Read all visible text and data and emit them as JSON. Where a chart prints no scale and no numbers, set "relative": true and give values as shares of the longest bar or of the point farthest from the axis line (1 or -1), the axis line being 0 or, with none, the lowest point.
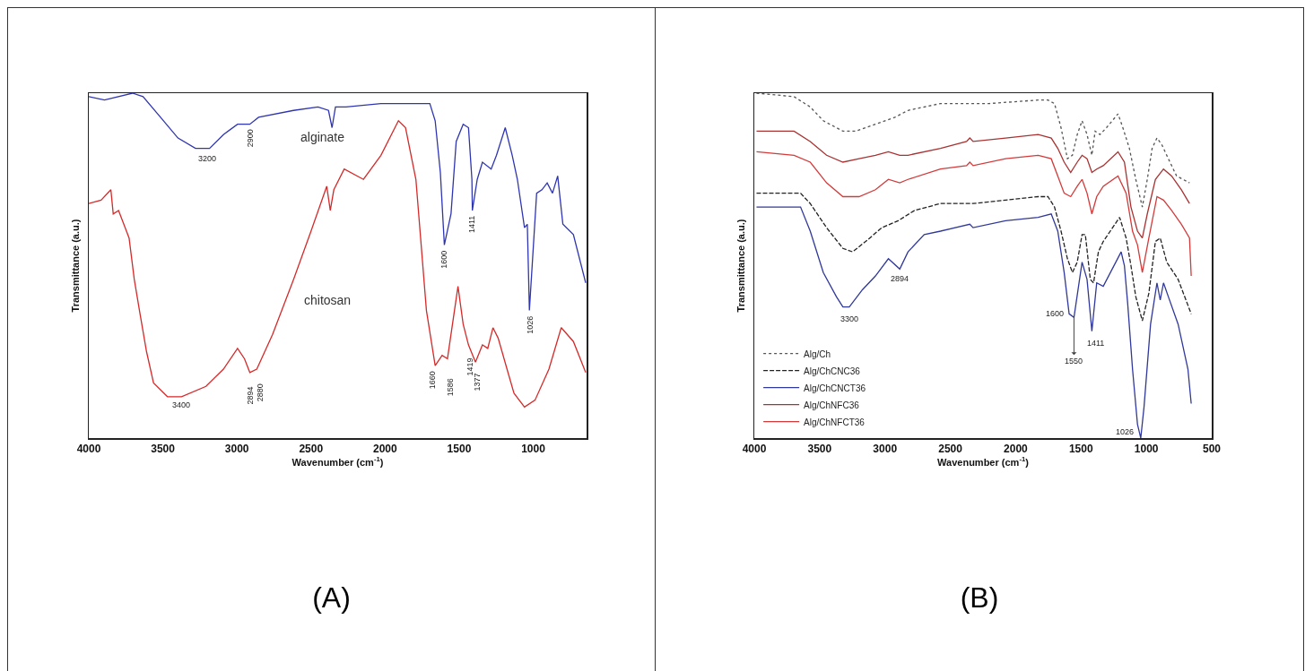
{
  "chart_data": [
    {
      "type": "line",
      "relative": true,
      "xlabel": "Wavenumber (cm$^{-1}$)",
      "ylabel": "Transmittance (a.u.)",
      "xlim": [
        4000,
        640
      ],
      "xticks": [
        4000,
        3500,
        3000,
        2500,
        2000,
        1500,
        1000
      ],
      "grid": false,
      "legend": false,
      "marker": "none",
      "series": [
        {
          "name": "alginate",
          "color": "#2f35b0",
          "line_style": "solid",
          "x": [
            4000,
            3894,
            3705,
            3634,
            3516,
            3398,
            3280,
            3185,
            3091,
            2996,
            2913,
            2854,
            2618,
            2453,
            2382,
            2358,
            2335,
            2264,
            2028,
            1721,
            1698,
            1662,
            1627,
            1600,
            1555,
            1520,
            1473,
            1437,
            1414,
            1411,
            1378,
            1343,
            1284,
            1248,
            1189,
            1142,
            1107,
            1059,
            1040,
            1026,
            977,
            941,
            906,
            870,
            835,
            800,
            729,
            646
          ],
          "values": [
            0.99,
            0.98,
            1.0,
            0.99,
            0.93,
            0.87,
            0.84,
            0.84,
            0.88,
            0.91,
            0.91,
            0.93,
            0.95,
            0.96,
            0.95,
            0.9,
            0.96,
            0.96,
            0.97,
            0.97,
            0.97,
            0.92,
            0.77,
            0.56,
            0.65,
            0.86,
            0.91,
            0.9,
            0.75,
            0.66,
            0.75,
            0.8,
            0.78,
            0.82,
            0.9,
            0.82,
            0.75,
            0.61,
            0.62,
            0.37,
            0.71,
            0.72,
            0.74,
            0.71,
            0.76,
            0.62,
            0.59,
            0.45
          ]
        },
        {
          "name": "chitosan",
          "color": "#d42a2a",
          "line_style": "solid",
          "x": [
            4000,
            3917,
            3851,
            3835,
            3799,
            3728,
            3693,
            3658,
            3610,
            3563,
            3469,
            3374,
            3209,
            3091,
            2996,
            2949,
            2913,
            2866,
            2760,
            2618,
            2500,
            2394,
            2370,
            2346,
            2276,
            2146,
            2028,
            1910,
            1862,
            1792,
            1721,
            1662,
            1615,
            1579,
            1508,
            1473,
            1437,
            1390,
            1343,
            1307,
            1272,
            1237,
            1177,
            1130,
            1059,
            988,
            894,
            811,
            729,
            646
          ],
          "values": [
            0.68,
            0.69,
            0.72,
            0.65,
            0.66,
            0.58,
            0.46,
            0.37,
            0.25,
            0.16,
            0.12,
            0.12,
            0.15,
            0.2,
            0.26,
            0.23,
            0.19,
            0.2,
            0.3,
            0.46,
            0.6,
            0.73,
            0.66,
            0.72,
            0.78,
            0.75,
            0.82,
            0.92,
            0.9,
            0.75,
            0.37,
            0.21,
            0.24,
            0.23,
            0.44,
            0.33,
            0.27,
            0.22,
            0.27,
            0.26,
            0.32,
            0.29,
            0.2,
            0.13,
            0.09,
            0.11,
            0.2,
            0.32,
            0.28,
            0.19
          ]
        }
      ],
      "annotations": [
        {
          "text": "3200",
          "x": 3200,
          "y": 0.84
        },
        {
          "text": "2900",
          "x": 2913,
          "y": 0.91
        },
        {
          "text": "1600",
          "x": 1600,
          "y": 0.56
        },
        {
          "text": "1411",
          "x": 1411,
          "y": 0.66
        },
        {
          "text": "1026",
          "x": 1026,
          "y": 0.37
        },
        {
          "text": "3400",
          "x": 3374,
          "y": 0.12
        },
        {
          "text": "2894",
          "x": 2913,
          "y": 0.19
        },
        {
          "text": "2880",
          "x": 2866,
          "y": 0.2
        },
        {
          "text": "1660",
          "x": 1662,
          "y": 0.21
        },
        {
          "text": "1586",
          "x": 1579,
          "y": 0.23
        },
        {
          "text": "1419",
          "x": 1437,
          "y": 0.27
        },
        {
          "text": "1377",
          "x": 1390,
          "y": 0.22
        },
        "(A)"
      ]
    },
    {
      "type": "line",
      "relative": true,
      "xlabel": "Wavenumber (cm$^{-1}$)",
      "ylabel": "Transmittance (a.u.)",
      "xlim": [
        4000,
        500
      ],
      "xticks": [
        4000,
        3500,
        3000,
        2500,
        2000,
        1500,
        1000,
        500
      ],
      "grid": false,
      "legend": "bottom left",
      "marker": "none",
      "series": [
        {
          "name": "Alg/Ch",
          "color": "#555555",
          "line_style": "dotted",
          "x": [
            3983,
            3696,
            3572,
            3472,
            3322,
            3223,
            3073,
            2924,
            2824,
            2575,
            2326,
            2201,
            1828,
            1753,
            1703,
            1653,
            1604,
            1566,
            1529,
            1492,
            1454,
            1417,
            1392,
            1355,
            1305,
            1217,
            1180,
            1130,
            1081,
            1031,
            993,
            956,
            919,
            881,
            832,
            769,
            670
          ],
          "values": [
            1.0,
            0.99,
            0.96,
            0.92,
            0.89,
            0.89,
            0.91,
            0.93,
            0.95,
            0.97,
            0.97,
            0.97,
            0.98,
            0.98,
            0.97,
            0.9,
            0.81,
            0.82,
            0.88,
            0.92,
            0.88,
            0.82,
            0.89,
            0.88,
            0.9,
            0.94,
            0.9,
            0.84,
            0.75,
            0.67,
            0.75,
            0.84,
            0.87,
            0.85,
            0.81,
            0.76,
            0.74
          ]
        },
        {
          "name": "Alg/ChCNC36",
          "color": "#222222",
          "line_style": "dashed",
          "x": [
            3983,
            3646,
            3572,
            3447,
            3322,
            3248,
            3148,
            3024,
            2899,
            2774,
            2575,
            2326,
            2077,
            1828,
            1753,
            1703,
            1653,
            1604,
            1566,
            1529,
            1492,
            1467,
            1429,
            1404,
            1367,
            1330,
            1205,
            1155,
            1118,
            1081,
            1031,
            981,
            931,
            894,
            844,
            757,
            657
          ],
          "values": [
            0.71,
            0.71,
            0.68,
            0.61,
            0.55,
            0.54,
            0.57,
            0.61,
            0.63,
            0.66,
            0.68,
            0.68,
            0.69,
            0.7,
            0.7,
            0.67,
            0.6,
            0.52,
            0.48,
            0.51,
            0.59,
            0.59,
            0.46,
            0.45,
            0.54,
            0.57,
            0.64,
            0.58,
            0.5,
            0.41,
            0.34,
            0.42,
            0.57,
            0.58,
            0.51,
            0.46,
            0.36
          ]
        },
        {
          "name": "Alg/ChCNCT36",
          "color": "#30389a",
          "line_style": "solid",
          "x": [
            3983,
            3746,
            3646,
            3572,
            3472,
            3372,
            3322,
            3273,
            3173,
            3073,
            2974,
            2887,
            2824,
            2700,
            2575,
            2351,
            2326,
            2077,
            1828,
            1728,
            1678,
            1629,
            1591,
            1554,
            1492,
            1454,
            1417,
            1380,
            1330,
            1193,
            1168,
            1143,
            1106,
            1068,
            1043,
            1018,
            968,
            919,
            894,
            869,
            832,
            757,
            682,
            657
          ],
          "values": [
            0.67,
            0.67,
            0.67,
            0.6,
            0.48,
            0.41,
            0.38,
            0.38,
            0.43,
            0.47,
            0.52,
            0.49,
            0.54,
            0.59,
            0.6,
            0.62,
            0.61,
            0.63,
            0.64,
            0.65,
            0.6,
            0.48,
            0.36,
            0.35,
            0.51,
            0.46,
            0.31,
            0.45,
            0.44,
            0.54,
            0.5,
            0.39,
            0.2,
            0.04,
            0.0,
            0.09,
            0.33,
            0.45,
            0.4,
            0.45,
            0.41,
            0.33,
            0.2,
            0.1
          ]
        },
        {
          "name": "Alg/ChNFC36",
          "color": "#a83232",
          "line_style": "solid",
          "x": [
            3983,
            3696,
            3572,
            3447,
            3322,
            3198,
            3073,
            2974,
            2887,
            2824,
            2575,
            2376,
            2351,
            2326,
            2077,
            1828,
            1728,
            1678,
            1629,
            1579,
            1529,
            1492,
            1454,
            1417,
            1380,
            1330,
            1217,
            1168,
            1118,
            1068,
            1031,
            993,
            931,
            869,
            807,
            732,
            670
          ],
          "values": [
            0.89,
            0.89,
            0.86,
            0.82,
            0.8,
            0.81,
            0.82,
            0.83,
            0.82,
            0.82,
            0.84,
            0.86,
            0.87,
            0.86,
            0.87,
            0.88,
            0.87,
            0.84,
            0.8,
            0.77,
            0.8,
            0.82,
            0.81,
            0.77,
            0.78,
            0.79,
            0.83,
            0.8,
            0.67,
            0.6,
            0.58,
            0.65,
            0.75,
            0.78,
            0.76,
            0.72,
            0.68
          ]
        },
        {
          "name": "Alg/ChNFCT36",
          "color": "#d23b3b",
          "line_style": "solid",
          "x": [
            3983,
            3696,
            3572,
            3447,
            3322,
            3198,
            3073,
            2974,
            2887,
            2824,
            2575,
            2376,
            2351,
            2326,
            2077,
            1828,
            1728,
            1678,
            1629,
            1579,
            1529,
            1492,
            1454,
            1417,
            1380,
            1330,
            1217,
            1155,
            1106,
            1068,
            1031,
            981,
            919,
            869,
            807,
            732,
            670,
            657
          ],
          "values": [
            0.83,
            0.82,
            0.8,
            0.74,
            0.7,
            0.7,
            0.72,
            0.75,
            0.74,
            0.75,
            0.78,
            0.79,
            0.8,
            0.79,
            0.81,
            0.82,
            0.81,
            0.76,
            0.71,
            0.7,
            0.73,
            0.75,
            0.71,
            0.65,
            0.7,
            0.73,
            0.76,
            0.71,
            0.6,
            0.56,
            0.48,
            0.58,
            0.7,
            0.69,
            0.66,
            0.62,
            0.58,
            0.47
          ]
        }
      ],
      "annotations": [
        {
          "text": "3300",
          "x": 3273,
          "y": 0.38
        },
        {
          "text": "2894",
          "x": 2887,
          "y": 0.49
        },
        {
          "text": "1600",
          "x": 1591,
          "y": 0.36
        },
        {
          "text": "1550",
          "x": 1554,
          "y": 0.35
        },
        {
          "text": "1411",
          "x": 1417,
          "y": 0.31
        },
        {
          "text": "1026",
          "x": 1043,
          "y": 0.0
        },
        "(B)"
      ]
    }
  ]
}
